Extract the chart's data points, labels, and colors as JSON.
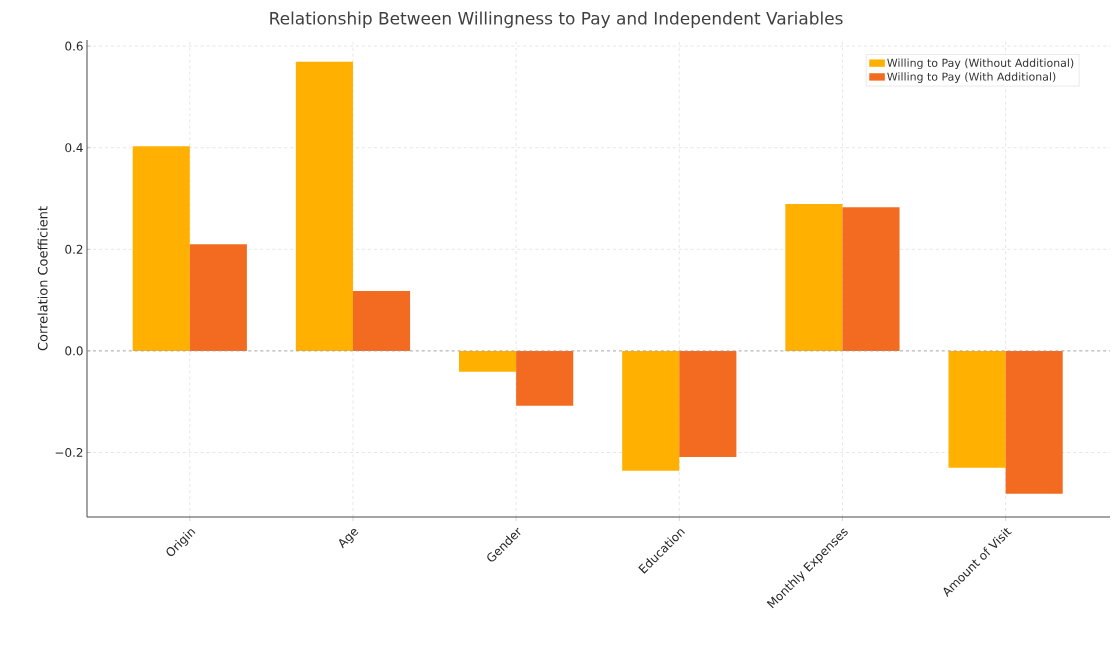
{
  "chart_data": {
    "type": "bar",
    "title": "Relationship Between Willingness to Pay and Independent Variables",
    "ylabel": "Correlation Coefficient",
    "categories": [
      "Origin",
      "Age",
      "Gender",
      "Education",
      "Monthly Expenses",
      "Amount of Visit"
    ],
    "series": [
      {
        "name": "Willing to Pay (Without Additional)",
        "color": "#ffb000",
        "values": [
          0.403,
          0.569,
          -0.041,
          -0.236,
          0.289,
          -0.23
        ]
      },
      {
        "name": "Willing to Pay (With Additional)",
        "color": "#f26b21",
        "values": [
          0.21,
          0.118,
          -0.108,
          -0.209,
          0.283,
          -0.281
        ]
      }
    ],
    "ylim": [
      -0.327,
      0.612
    ],
    "yticks": [
      {
        "value": -0.2,
        "label": "−0.2"
      },
      {
        "value": 0.0,
        "label": "0.0"
      },
      0.2,
      0.4,
      0.6
    ],
    "ref_lines": [
      {
        "axis": "y",
        "value": 0,
        "color": "#a0a0a0",
        "line_style": "dashed"
      }
    ],
    "grid": true,
    "legend": "top right"
  }
}
